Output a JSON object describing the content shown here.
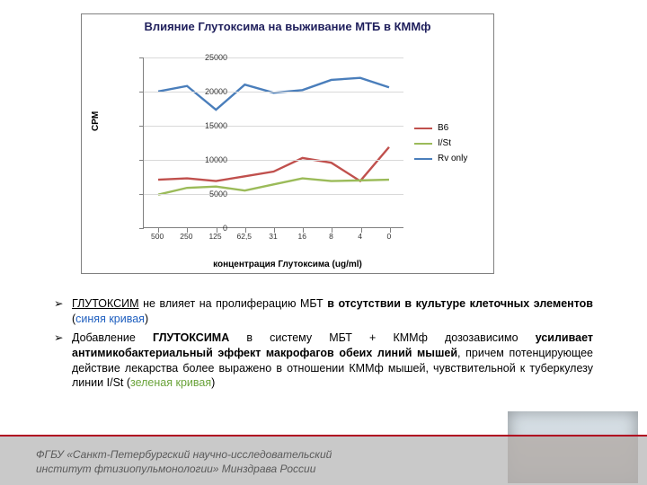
{
  "chart": {
    "type": "line",
    "title": "Влияние Глутоксима на выживание МТБ в КММф",
    "title_color": "#1f1f5c",
    "title_fontsize": 13,
    "yaxis_title": "CPM",
    "xaxis_title": "концентрация Глутоксима (ug/ml)",
    "background_color": "#ffffff",
    "grid_color": "#d9d9d9",
    "border_color": "#808080",
    "xlabels": [
      "500",
      "250",
      "125",
      "62,5",
      "31",
      "16",
      "8",
      "4",
      "0"
    ],
    "ylim": [
      0,
      25000
    ],
    "ytick_step": 5000,
    "yticks": [
      0,
      5000,
      10000,
      15000,
      20000,
      25000
    ],
    "series": [
      {
        "name": "B6",
        "color": "#c0504d",
        "width": 2.4,
        "data": [
          7000,
          7200,
          6800,
          7500,
          8200,
          10200,
          9500,
          6800,
          11800
        ]
      },
      {
        "name": "I/St",
        "color": "#9bbb59",
        "width": 2.4,
        "data": [
          4800,
          5800,
          6000,
          5400,
          6300,
          7200,
          6800,
          6900,
          7000
        ]
      },
      {
        "name": "Rv only",
        "color": "#4a7ebb",
        "width": 2.4,
        "data": [
          20000,
          20800,
          17300,
          21000,
          19800,
          20200,
          21700,
          22000,
          20600
        ]
      }
    ],
    "legend_fontsize": 10
  },
  "bullets": {
    "mark": "➢",
    "items": [
      {
        "html_parts": [
          {
            "t": "ГЛУТОКСИМ",
            "u": true
          },
          {
            "t": " не влияет на пролиферацию МБТ "
          },
          {
            "t": "в отсутствии в культуре клеточных элементов",
            "b": true
          },
          {
            "t": " ("
          },
          {
            "t": "синяя кривая",
            "color": "#1f5fbf"
          },
          {
            "t": ")"
          }
        ]
      },
      {
        "html_parts": [
          {
            "t": "Добавление "
          },
          {
            "t": "ГЛУТОКСИМА",
            "b": true
          },
          {
            "t": " в систему МБТ + КММф дозозависимо "
          },
          {
            "t": "усиливает антимикобактериальный эффект макрофагов обеих линий мышей",
            "b": true
          },
          {
            "t": ", причем потенцирующее действие лекарства более выражено в отношении КММф мышей, чувствительной к туберкулезу линии I/St ("
          },
          {
            "t": "зеленая кривая",
            "color": "#6aa33a"
          },
          {
            "t": ")"
          }
        ]
      }
    ]
  },
  "footer": {
    "line1": "ФГБУ «Санкт-Петербургский научно-исследовательский",
    "line2": "институт фтизиопульмонологии» Минздрава России",
    "bar_color": "#bfbfbf",
    "stripe_color": "#b00020"
  }
}
